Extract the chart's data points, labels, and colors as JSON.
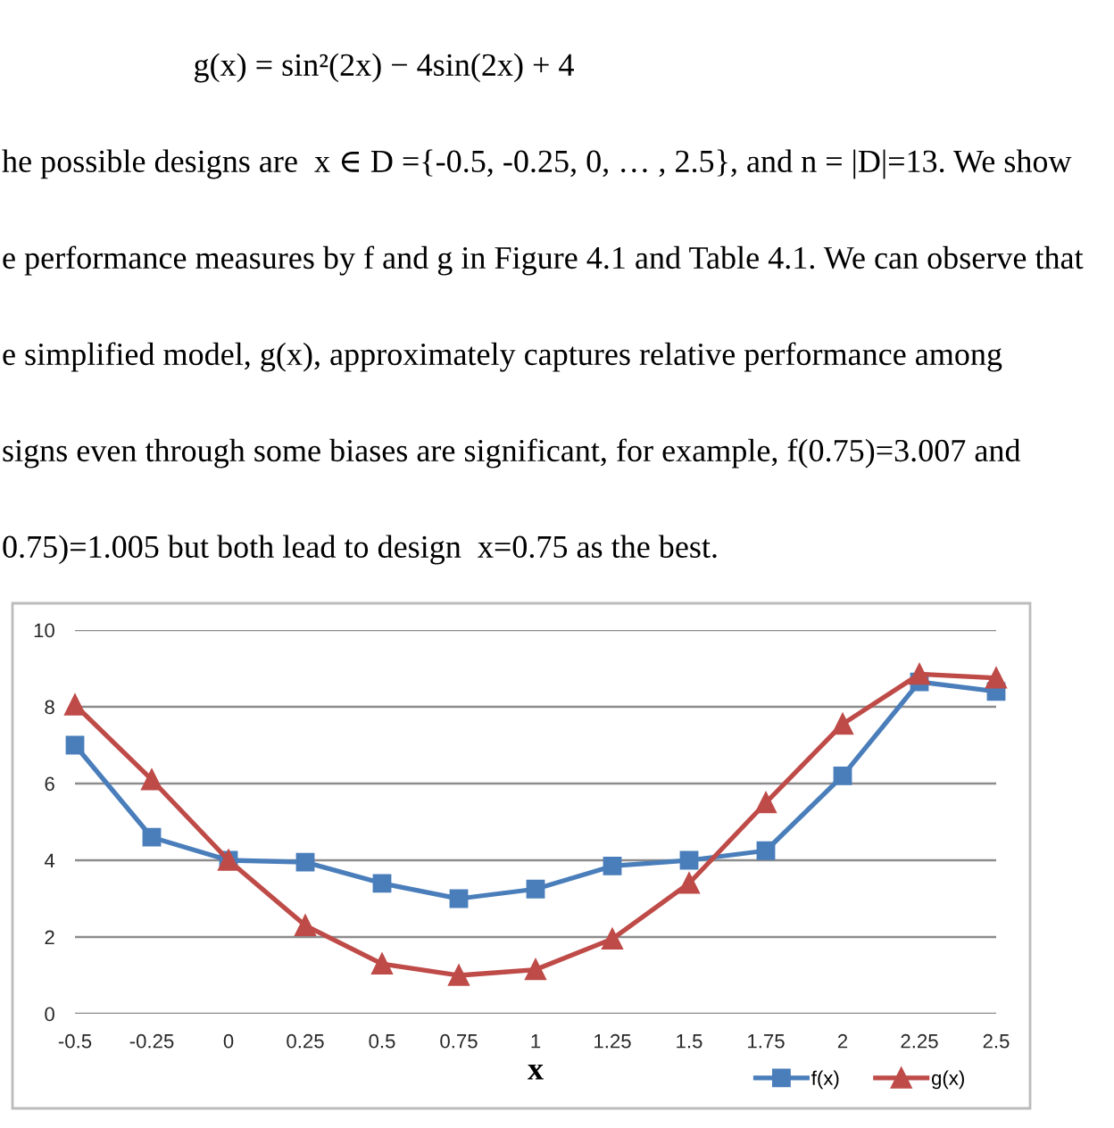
{
  "chart_data": {
    "type": "line",
    "annotations": [
      "g(x) = sin²(2x) − 4sin(2x) + 4",
      "he possible designs are  x ∈ D ={-0.5, -0.25, 0, … , 2.5}, and n = |D|=13. We show",
      "e performance measures by f and g in Figure 4.1 and Table 4.1. We can observe that",
      "e simplified model, g(x), approximately captures relative performance among",
      "signs even through some biases are significant, for example, f(0.75)=3.007 and",
      "0.75)=1.005 but both lead to design  x=0.75 as the best."
    ],
    "xlabel": "x",
    "categories": [
      "-0.5",
      "-0.25",
      "0",
      "0.25",
      "0.5",
      "0.75",
      "1",
      "1.25",
      "1.5",
      "1.75",
      "2",
      "2.25",
      "2.5"
    ],
    "series": [
      {
        "name": "f(x)",
        "color": "#4a7ebb",
        "marker": "square",
        "values": [
          7.0,
          4.6,
          4.0,
          3.95,
          3.4,
          3.0,
          3.25,
          3.85,
          4.0,
          4.25,
          6.2,
          8.65,
          8.4
        ]
      },
      {
        "name": "g(x)",
        "color": "#be4b48",
        "marker": "triangle",
        "values": [
          8.05,
          6.1,
          4.0,
          2.3,
          1.3,
          1.0,
          1.15,
          1.95,
          3.4,
          5.5,
          7.55,
          8.85,
          8.75
        ]
      }
    ],
    "ylim": [
      0,
      10
    ],
    "yticks": [
      0,
      2,
      4,
      6,
      8,
      10
    ],
    "grid": "y",
    "legend": "bottom right",
    "line_style": "solid"
  }
}
